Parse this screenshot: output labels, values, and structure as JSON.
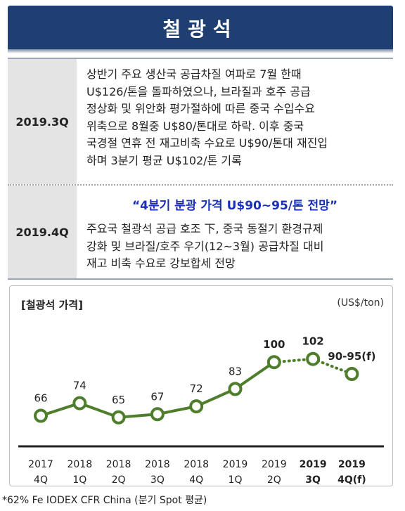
{
  "header": {
    "title": "철광석"
  },
  "rows": [
    {
      "period": "2019.3Q",
      "lines": [
        "상반기 주요 생산국 공급차질 여파로 7월 한때",
        "U$126/톤을 돌파하였으나, 브라질과 호주 공급",
        "정상화 및 위안화 평가절하에 따른 중국 수입수요",
        "위축으로 8월중 U$80/톤대로 하락. 이후 중국",
        "국경절 연휴 전 재고비축 수요로 U$90/톤대 재진입",
        "하며 3분기 평균 U$102/톤 기록"
      ]
    },
    {
      "period": "2019.4Q",
      "highlight": "“4분기 분광 가격 U$90~95/톤 전망”",
      "lines": [
        "주요국 철광석 공급 호조 下, 중국 동절기 환경규제",
        "강화 및 브라질/호주 우기(12~3월) 공급차질 대비",
        "재고 비축 수요로 강보합세 전망"
      ]
    }
  ],
  "chart": {
    "title": "[철광석 가격]",
    "unit": "(US$/ton)",
    "footnote": "*62% Fe IODEX CFR China (분기 Spot 평균)"
  },
  "chart_data": {
    "type": "line",
    "title": "[철광석 가격]",
    "ylabel": "(US$/ton)",
    "categories": [
      [
        "2017",
        "4Q"
      ],
      [
        "2018",
        "1Q"
      ],
      [
        "2018",
        "2Q"
      ],
      [
        "2018",
        "3Q"
      ],
      [
        "2018",
        "4Q"
      ],
      [
        "2019",
        "1Q"
      ],
      [
        "2019",
        "2Q"
      ],
      [
        "2019",
        "3Q"
      ],
      [
        "2019",
        "4Q(f)"
      ]
    ],
    "values": [
      66,
      74,
      65,
      67,
      72,
      83,
      100,
      102,
      92.5
    ],
    "value_labels": [
      "66",
      "74",
      "65",
      "67",
      "72",
      "83",
      "100",
      "102",
      "90-95(f)"
    ],
    "bold_labels": [
      false,
      false,
      false,
      false,
      false,
      false,
      true,
      true,
      true
    ],
    "bold_categories": [
      false,
      false,
      false,
      false,
      false,
      false,
      false,
      true,
      true
    ],
    "forecast_from_index": 6,
    "line_color": "#4e7d2c",
    "highlight_color": "#1a2fb8",
    "header_color": "#1f3f73"
  }
}
